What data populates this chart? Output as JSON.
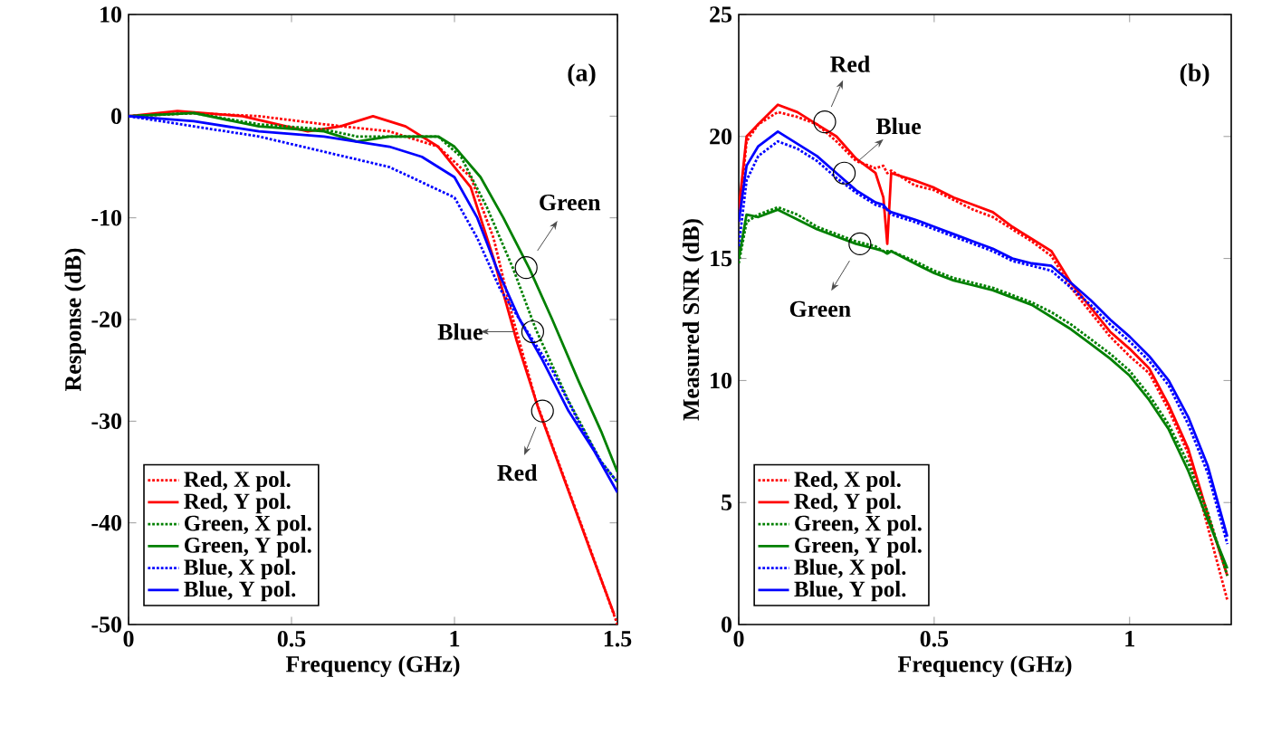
{
  "chart_data": [
    {
      "type": "line",
      "xlabel": "Frequency (GHz)",
      "ylabel": "Response (dB)",
      "xlim": [
        0,
        1.5
      ],
      "ylim": [
        -50,
        10
      ],
      "xticks": [
        0,
        0.5,
        1,
        1.5
      ],
      "yticks": [
        -50,
        -40,
        -30,
        -20,
        -10,
        0,
        10
      ],
      "grid": false,
      "legend": "bottom left",
      "marker": "none",
      "annotations": [
        "(a)",
        {
          "text": "Green",
          "x": 1.22,
          "y": -14.9
        },
        {
          "text": "Blue",
          "x": 1.24,
          "y": -21.2
        },
        {
          "text": "Red",
          "x": 1.27,
          "y": -29
        }
      ],
      "series": [
        {
          "name": "Red, X pol.",
          "color": "#ff0000",
          "line_style": "dotted",
          "x": [
            0,
            0.2,
            0.4,
            0.6,
            0.8,
            0.95,
            1.05,
            1.12,
            1.18,
            1.25,
            1.33,
            1.41,
            1.5
          ],
          "values": [
            0,
            0.3,
            0,
            -0.8,
            -1.5,
            -3,
            -6,
            -12,
            -20,
            -28,
            -35,
            -42,
            -50
          ]
        },
        {
          "name": "Red, Y pol.",
          "color": "#ff0000",
          "line_style": "solid",
          "x": [
            0,
            0.15,
            0.35,
            0.55,
            0.65,
            0.75,
            0.85,
            0.95,
            1.05,
            1.12,
            1.19,
            1.26,
            1.34,
            1.42,
            1.49
          ],
          "values": [
            0,
            0.5,
            0,
            -1.5,
            -1,
            0,
            -1,
            -3,
            -7,
            -14,
            -22,
            -29,
            -36,
            -43,
            -49
          ]
        },
        {
          "name": "Green, X pol.",
          "color": "#008000",
          "line_style": "dotted",
          "x": [
            0,
            0.2,
            0.4,
            0.6,
            0.7,
            0.8,
            0.95,
            1.02,
            1.1,
            1.18,
            1.25,
            1.35,
            1.45,
            1.5
          ],
          "values": [
            0,
            0.3,
            -0.8,
            -1.3,
            -2,
            -2,
            -2,
            -4,
            -9,
            -15,
            -21,
            -28,
            -34,
            -36
          ]
        },
        {
          "name": "Green, Y pol.",
          "color": "#008000",
          "line_style": "solid",
          "x": [
            0,
            0.2,
            0.4,
            0.6,
            0.7,
            0.8,
            0.95,
            1.0,
            1.08,
            1.15,
            1.23,
            1.3,
            1.38,
            1.45,
            1.5
          ],
          "values": [
            0,
            0.3,
            -1,
            -1.5,
            -2.5,
            -2,
            -2,
            -3,
            -6,
            -10,
            -15,
            -20,
            -26,
            -31,
            -35
          ]
        },
        {
          "name": "Blue, X pol.",
          "color": "#0000ff",
          "line_style": "dotted",
          "x": [
            0,
            0.2,
            0.4,
            0.6,
            0.8,
            0.9,
            1.0,
            1.07,
            1.14,
            1.22,
            1.3,
            1.38,
            1.45,
            1.5
          ],
          "values": [
            0,
            -1,
            -2,
            -3.5,
            -5,
            -6.5,
            -8,
            -12,
            -17,
            -21,
            -25,
            -30,
            -34,
            -36
          ]
        },
        {
          "name": "Blue, Y pol.",
          "color": "#0000ff",
          "line_style": "solid",
          "x": [
            0,
            0.2,
            0.4,
            0.6,
            0.8,
            0.9,
            1.0,
            1.07,
            1.13,
            1.2,
            1.27,
            1.35,
            1.43,
            1.5
          ],
          "values": [
            0,
            -0.5,
            -1.5,
            -2,
            -3,
            -4,
            -6,
            -10,
            -15,
            -20,
            -24,
            -29,
            -33,
            -37
          ]
        }
      ]
    },
    {
      "type": "line",
      "xlabel": "Frequency (GHz)",
      "ylabel": "Measured SNR (dB)",
      "xlim": [
        0,
        1.26
      ],
      "ylim": [
        0,
        25
      ],
      "xticks": [
        0,
        0.5,
        1
      ],
      "yticks": [
        0,
        5,
        10,
        15,
        20,
        25
      ],
      "grid": false,
      "legend": "bottom left",
      "marker": "none",
      "x": [
        0,
        0.02,
        0.05,
        0.1,
        0.15,
        0.2,
        0.25,
        0.3,
        0.35,
        0.37,
        0.38,
        0.39,
        0.45,
        0.5,
        0.55,
        0.6,
        0.65,
        0.7,
        0.75,
        0.8,
        0.85,
        0.9,
        0.95,
        1.0,
        1.05,
        1.1,
        1.15,
        1.2,
        1.25
      ],
      "annotations": [
        "(b)",
        {
          "text": "Red",
          "x": 0.22,
          "y": 20.6
        },
        {
          "text": "Blue",
          "x": 0.27,
          "y": 18.5
        },
        {
          "text": "Green",
          "x": 0.31,
          "y": 15.6
        }
      ],
      "series": [
        {
          "name": "Red, X pol.",
          "color": "#ff0000",
          "line_style": "dotted",
          "values": [
            16.5,
            19.8,
            20.5,
            21,
            20.8,
            20.5,
            19.8,
            19,
            18.7,
            18.8,
            18.5,
            18.6,
            18,
            17.8,
            17.4,
            17,
            16.7,
            16.2,
            15.7,
            15.1,
            13.8,
            12.8,
            11.8,
            11,
            10.3,
            8.8,
            7,
            4,
            1
          ]
        },
        {
          "name": "Red, Y pol.",
          "color": "#ff0000",
          "line_style": "solid",
          "values": [
            17,
            20,
            20.5,
            21.3,
            21,
            20.5,
            20,
            19.1,
            18.5,
            17.5,
            15.6,
            18.5,
            18.2,
            17.9,
            17.5,
            17.2,
            16.9,
            16.3,
            15.8,
            15.3,
            14,
            13,
            12,
            11.3,
            10.5,
            9,
            7.2,
            4.5,
            2
          ]
        },
        {
          "name": "Green, X pol.",
          "color": "#008000",
          "line_style": "dotted",
          "values": [
            14.8,
            16.5,
            16.8,
            17.1,
            16.8,
            16.3,
            16,
            15.7,
            15.5,
            15.3,
            15.3,
            15.3,
            14.9,
            14.5,
            14.2,
            14,
            13.8,
            13.5,
            13.2,
            12.8,
            12.3,
            11.7,
            11.1,
            10.4,
            9.4,
            8.2,
            6.6,
            4.6,
            2
          ]
        },
        {
          "name": "Green, Y pol.",
          "color": "#008000",
          "line_style": "solid",
          "values": [
            15,
            16.8,
            16.7,
            17,
            16.6,
            16.2,
            15.9,
            15.6,
            15.4,
            15.3,
            15.2,
            15.3,
            14.8,
            14.4,
            14.1,
            13.9,
            13.7,
            13.4,
            13.1,
            12.6,
            12.1,
            11.5,
            10.9,
            10.2,
            9.2,
            8,
            6.3,
            4.3,
            2.3
          ]
        },
        {
          "name": "Blue, X pol.",
          "color": "#0000ff",
          "line_style": "dotted",
          "values": [
            15.5,
            18.2,
            19.2,
            19.8,
            19.5,
            19,
            18.3,
            17.7,
            17.2,
            17.1,
            17,
            16.8,
            16.5,
            16.2,
            15.9,
            15.6,
            15.3,
            14.9,
            14.7,
            14.5,
            13.8,
            13.1,
            12.3,
            11.6,
            10.8,
            9.8,
            8.2,
            6.2,
            3.3
          ]
        },
        {
          "name": "Blue, Y pol.",
          "color": "#0000ff",
          "line_style": "solid",
          "values": [
            16.5,
            18.8,
            19.6,
            20.2,
            19.7,
            19.2,
            18.5,
            17.8,
            17.3,
            17.2,
            17,
            16.9,
            16.6,
            16.3,
            16,
            15.7,
            15.4,
            15,
            14.8,
            14.7,
            14,
            13.3,
            12.5,
            11.8,
            11,
            10,
            8.5,
            6.5,
            3.6
          ]
        }
      ]
    }
  ]
}
